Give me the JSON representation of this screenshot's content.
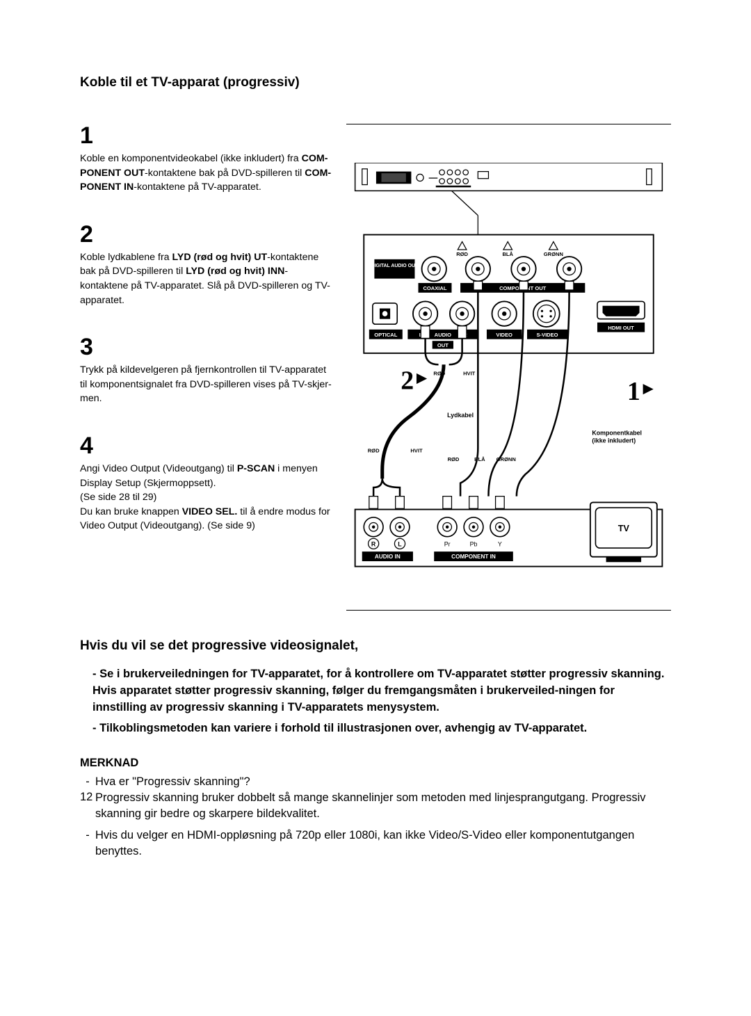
{
  "title": "Koble til et TV-apparat (progressiv)",
  "steps": [
    {
      "num": "1",
      "html": "Koble en komponentvideokabel (ikke inkludert) fra <b>COM-PONENT OUT</b>-kontaktene bak på DVD-spilleren til <b>COM-PONENT IN</b>-kontaktene på TV-apparatet."
    },
    {
      "num": "2",
      "html": "Koble lydkablene fra <b>LYD (rød og hvit) UT</b>-kontaktene bak på DVD-spilleren til <b>LYD (rød og hvit) INN</b>-kontaktene på TV-apparatet. Slå på DVD-spilleren og TV-apparatet."
    },
    {
      "num": "3",
      "html": "Trykk på kildevelgeren på fjernkontrollen til TV-apparatet til komponentsignalet fra DVD-spilleren vises på TV-skjer-men."
    },
    {
      "num": "4",
      "html": "Angi Video Output (Videoutgang) til <b>P-SCAN</b> i menyen Display Setup (Skjermoppsett).<br>(Se side 28 til 29)<br>Du kan bruke knappen <b>VIDEO SEL.</b> til å endre modus for Video Output (Videoutgang). (Se side 9)"
    }
  ],
  "subhead": "Hvis du vil se det progressive videosignalet,",
  "sub_bullets": [
    "Se i brukerveiledningen for TV-apparatet, for å kontrollere om TV-apparatet støtter progressiv skanning. Hvis apparatet støtter progressiv skanning, følger du fremgangsmåten i brukerveiled-ningen for innstilling av progressiv skanning i TV-apparatets menysystem.",
    "Tilkoblingsmetoden kan variere i forhold til illustrasjonen over, avhengig av TV-apparatet."
  ],
  "merknad_head": "MERKNAD",
  "merknad": [
    "Hva er \"Progressiv skanning\"?\nProgressiv skanning bruker dobbelt så mange skannelinjer som metoden med linjesprangutgang. Progressiv skanning gir bedre og skarpere bildekvalitet.",
    "Hvis du velger en HDMI-oppløsning på 720p eller 1080i, kan ikke Video/S-Video eller komponentutgangen benyttes."
  ],
  "page_number": "12",
  "diagram": {
    "labels": {
      "rod": "RØD",
      "bla": "BLÅ",
      "gronn": "GRØNN",
      "hvit": "HVIT",
      "digital_audio_out": "DIGITAL AUDIO OUT",
      "coaxial": "COAXIAL",
      "component_out": "COMPONENT OUT",
      "optical": "OPTICAL",
      "audio": "AUDIO",
      "out": "OUT",
      "video": "VIDEO",
      "svideo": "S-VIDEO",
      "hdmi_out": "HDMI OUT",
      "lydkabel": "Lydkabel",
      "komponentkabel": "Komponentkabel",
      "ikke_inkludert": "(ikke inkludert)",
      "tv": "TV",
      "audio_in": "AUDIO IN",
      "component_in": "COMPONENT IN",
      "r": "R",
      "l": "L",
      "pr": "Pr",
      "pb": "Pb",
      "y": "Y",
      "arrow2": "2",
      "arrow1": "1"
    },
    "colors": {
      "black": "#000000",
      "white": "#ffffff"
    }
  }
}
